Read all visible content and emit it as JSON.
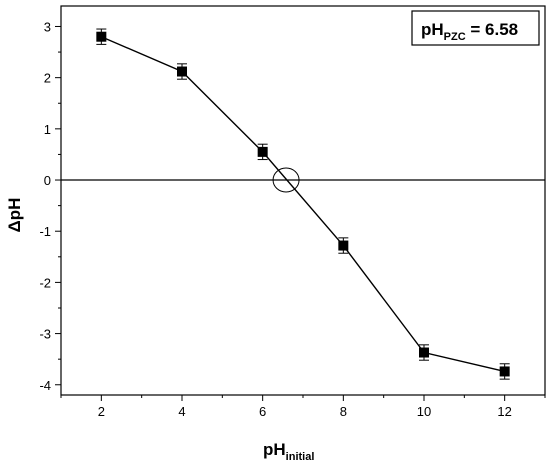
{
  "chart_data": {
    "type": "line",
    "title": "",
    "xlabel": {
      "main": "pH",
      "sub": "initial"
    },
    "ylabel": "ΔpH",
    "xlim": [
      1,
      13
    ],
    "ylim": [
      -4.2,
      3.4
    ],
    "x_ticks": [
      "2",
      "4",
      "6",
      "8",
      "10",
      "12"
    ],
    "y_ticks": [
      "3",
      "2",
      "1",
      "0",
      "-1",
      "-2",
      "-3",
      "-4"
    ],
    "grid": false,
    "zero_line": true,
    "series": [
      {
        "marker": "square",
        "color": "#000000",
        "x": [
          2,
          4,
          6,
          8,
          10,
          12
        ],
        "y": [
          2.8,
          2.12,
          0.55,
          -1.28,
          -3.37,
          -3.74
        ],
        "error": [
          0.15,
          0.15,
          0.15,
          0.15,
          0.15,
          0.15
        ]
      }
    ],
    "annotation": {
      "main": "pH",
      "sub": "PZC",
      "tail": " = 6.58"
    },
    "highlight": {
      "x": 6.58,
      "y": 0,
      "shape": "ellipse"
    }
  }
}
